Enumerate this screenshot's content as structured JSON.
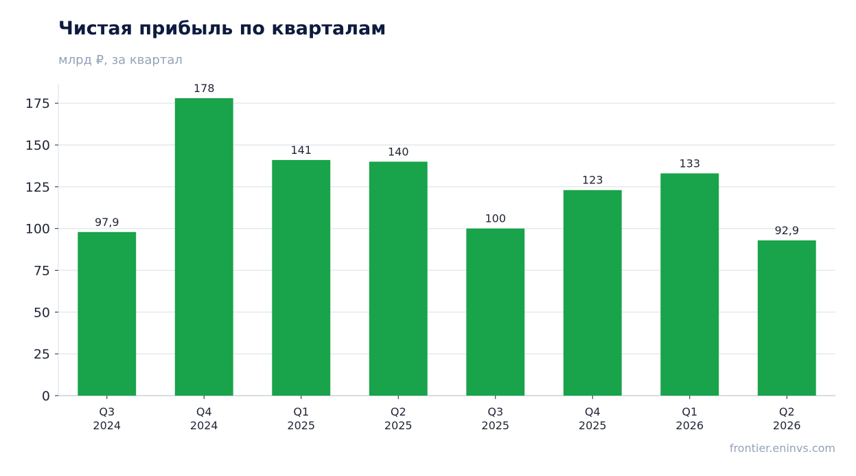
{
  "title": "Чистая прибыль по кварталам",
  "subtitle": "млрд ₽, за квартал",
  "source": "frontier.eninvs.com",
  "colors": {
    "bar": "#19a34a",
    "grid": "#e4e8ee",
    "axis": "#cbd2db",
    "title": "#0d1b3e",
    "muted": "#94a3b8"
  },
  "chart_data": {
    "type": "bar",
    "categories": [
      [
        "Q3",
        "2024"
      ],
      [
        "Q4",
        "2024"
      ],
      [
        "Q1",
        "2025"
      ],
      [
        "Q2",
        "2025"
      ],
      [
        "Q3",
        "2025"
      ],
      [
        "Q4",
        "2025"
      ],
      [
        "Q1",
        "2026"
      ],
      [
        "Q2",
        "2026"
      ]
    ],
    "values": [
      97.9,
      178,
      141,
      140,
      100,
      123,
      133,
      92.9
    ],
    "value_labels": [
      "97,9",
      "178",
      "141",
      "140",
      "100",
      "123",
      "133",
      "92,9"
    ],
    "yticks": [
      0,
      25,
      50,
      75,
      100,
      125,
      150,
      175
    ],
    "ylim": [
      0,
      186.6
    ],
    "xlabel": "",
    "ylabel": "",
    "grid": true
  }
}
